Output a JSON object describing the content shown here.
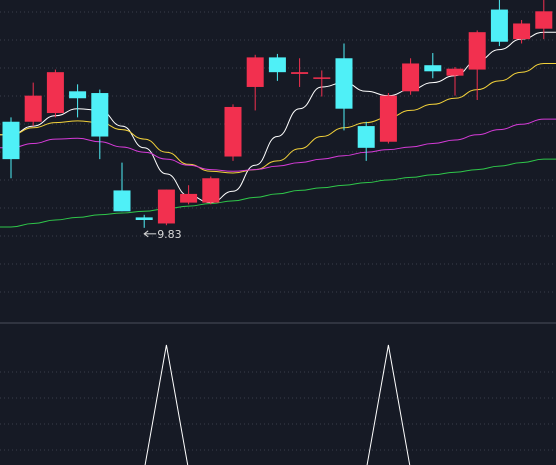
{
  "chart_data": {
    "type": "candlestick",
    "title": "",
    "xlabel": "",
    "ylabel": "",
    "grid": true,
    "colors": {
      "background": "#161a25",
      "up": "#f2304f",
      "down": "#4ff0f7",
      "ma5": "#ffffff",
      "ma10": "#f2d13a",
      "ma20": "#d63bd8",
      "ma60": "#2fc74a",
      "grid": "#3a3f4c",
      "divider": "#4a4f5a",
      "indicator": "#ffffff",
      "annotation": "#d8d8d8"
    },
    "ylim": [
      9.0,
      12.45
    ],
    "candles": [
      {
        "o": 11.05,
        "h": 11.1,
        "l": 10.4,
        "c": 10.62
      },
      {
        "o": 11.05,
        "h": 11.5,
        "l": 11.0,
        "c": 11.35
      },
      {
        "o": 11.15,
        "h": 11.65,
        "l": 11.1,
        "c": 11.62
      },
      {
        "o": 11.4,
        "h": 11.48,
        "l": 11.1,
        "c": 11.32
      },
      {
        "o": 11.38,
        "h": 11.42,
        "l": 10.62,
        "c": 10.88
      },
      {
        "o": 10.26,
        "h": 10.58,
        "l": 10.02,
        "c": 10.02
      },
      {
        "o": 9.95,
        "h": 9.98,
        "l": 9.83,
        "c": 9.92
      },
      {
        "o": 9.88,
        "h": 10.27,
        "l": 9.86,
        "c": 10.27
      },
      {
        "o": 10.12,
        "h": 10.32,
        "l": 10.1,
        "c": 10.22
      },
      {
        "o": 10.12,
        "h": 10.42,
        "l": 10.1,
        "c": 10.4
      },
      {
        "o": 10.65,
        "h": 11.25,
        "l": 10.6,
        "c": 11.22
      },
      {
        "o": 11.45,
        "h": 11.82,
        "l": 11.18,
        "c": 11.79
      },
      {
        "o": 11.79,
        "h": 11.83,
        "l": 11.52,
        "c": 11.62
      },
      {
        "o": 11.6,
        "h": 11.78,
        "l": 11.45,
        "c": 11.62
      },
      {
        "o": 11.56,
        "h": 11.64,
        "l": 11.34,
        "c": 11.56
      },
      {
        "o": 11.78,
        "h": 11.95,
        "l": 10.95,
        "c": 11.2
      },
      {
        "o": 11.0,
        "h": 11.05,
        "l": 10.6,
        "c": 10.75
      },
      {
        "o": 10.82,
        "h": 11.38,
        "l": 10.8,
        "c": 11.35
      },
      {
        "o": 11.4,
        "h": 11.78,
        "l": 11.36,
        "c": 11.72
      },
      {
        "o": 11.7,
        "h": 11.84,
        "l": 11.55,
        "c": 11.63
      },
      {
        "o": 11.58,
        "h": 11.68,
        "l": 11.35,
        "c": 11.66
      },
      {
        "o": 11.65,
        "h": 12.1,
        "l": 11.3,
        "c": 12.08
      },
      {
        "o": 12.34,
        "h": 12.45,
        "l": 11.92,
        "c": 11.97
      },
      {
        "o": 12.0,
        "h": 12.22,
        "l": 11.95,
        "c": 12.18
      },
      {
        "o": 12.12,
        "h": 12.55,
        "l": 12.0,
        "c": 12.32
      }
    ],
    "moving_averages": [
      {
        "color": "#ffffff",
        "values": [
          10.9,
          11.0,
          11.12,
          11.2,
          11.18,
          11.0,
          10.75,
          10.45,
          10.2,
          10.12,
          10.25,
          10.55,
          10.88,
          11.2,
          11.45,
          11.5,
          11.4,
          11.35,
          11.42,
          11.5,
          11.58,
          11.75,
          11.88,
          12.0,
          12.08
        ]
      },
      {
        "color": "#f2d13a",
        "values": [
          10.9,
          10.98,
          11.04,
          11.06,
          11.04,
          10.96,
          10.85,
          10.7,
          10.56,
          10.48,
          10.46,
          10.5,
          10.6,
          10.74,
          10.88,
          10.98,
          11.04,
          11.1,
          11.18,
          11.25,
          11.32,
          11.42,
          11.52,
          11.62,
          11.72
        ]
      },
      {
        "color": "#d63bd8",
        "values": [
          10.75,
          10.8,
          10.85,
          10.86,
          10.82,
          10.76,
          10.7,
          10.62,
          10.55,
          10.5,
          10.48,
          10.5,
          10.54,
          10.58,
          10.62,
          10.66,
          10.7,
          10.73,
          10.76,
          10.8,
          10.84,
          10.9,
          10.96,
          11.02,
          11.08
        ]
      },
      {
        "color": "#2fc74a",
        "values": [
          9.84,
          9.88,
          9.92,
          9.95,
          9.98,
          10.0,
          10.02,
          10.05,
          10.08,
          10.11,
          10.14,
          10.18,
          10.22,
          10.26,
          10.29,
          10.32,
          10.35,
          10.38,
          10.41,
          10.44,
          10.47,
          10.5,
          10.54,
          10.58,
          10.62
        ]
      }
    ],
    "low_label": "9.83",
    "indicator": {
      "ylim": [
        0,
        1
      ],
      "values": [
        0,
        0,
        0,
        0,
        0,
        0,
        0,
        1,
        0,
        0,
        0,
        0,
        0,
        0,
        0,
        0,
        0,
        1,
        0,
        0,
        0,
        0,
        0,
        0,
        0
      ]
    }
  }
}
